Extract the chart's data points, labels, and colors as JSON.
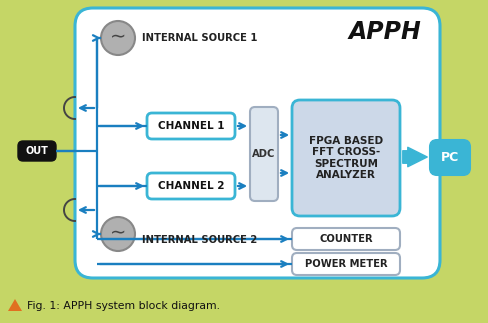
{
  "bg_color": "#c5d666",
  "fig_bg": "#c5d666",
  "main_box_fc": "#ffffff",
  "main_box_ec": "#3ab5d5",
  "channel_fc": "#ffffff",
  "channel_ec": "#3ab5d5",
  "adc_fc": "#dde6ef",
  "adc_ec": "#a0aec0",
  "fpga_fc": "#ccd8e8",
  "fpga_ec": "#3ab5d5",
  "small_fc": "#ffffff",
  "small_ec": "#a0aec0",
  "out_fc": "#111111",
  "pc_fc": "#3ab5d5",
  "pc_ec": "#3ab5d5",
  "arrow_fc": "#1a7fc0",
  "source_fc": "#b0b0b0",
  "source_ec": "#888888",
  "caption_tri": "#e07020",
  "title": "APPH",
  "ch1_label": "CHANNEL 1",
  "ch2_label": "CHANNEL 2",
  "adc_label": "ADC",
  "fpga_label": "FPGA BASED\nFFT CROSS-\nSPECTRUM\nANALYZER",
  "counter_label": "COUNTER",
  "pm_label": "POWER METER",
  "out_label": "OUT",
  "pc_label": "PC",
  "src1_label": "INTERNAL SOURCE 1",
  "src2_label": "INTERNAL SOURCE 2",
  "caption": "Fig. 1: APPH system block diagram."
}
